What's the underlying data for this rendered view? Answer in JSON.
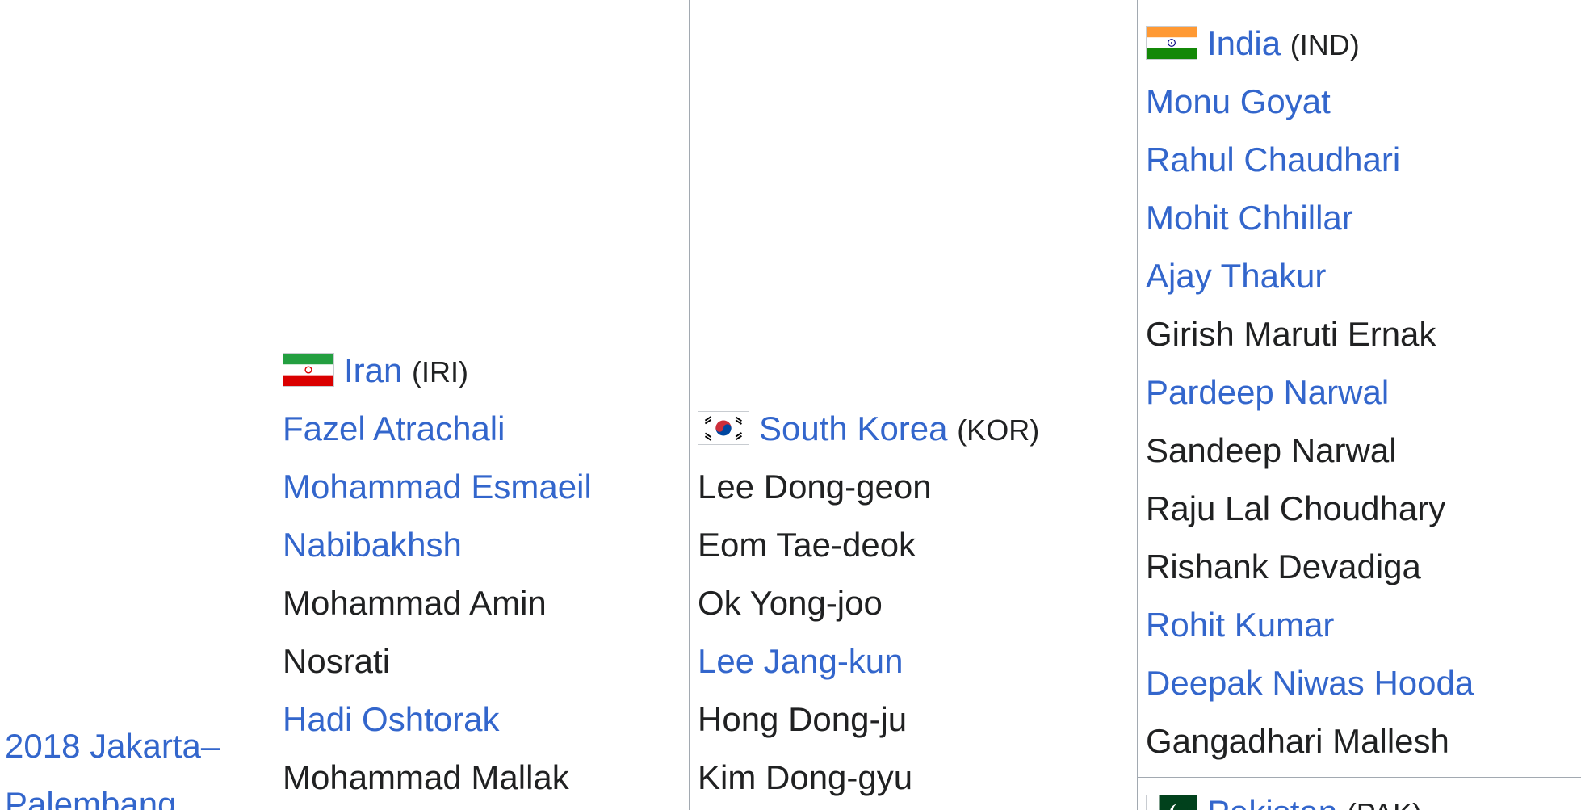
{
  "year": {
    "line1": "2018 Jakarta–",
    "line2": "Palembang"
  },
  "gold": {
    "country": "Iran",
    "code": "(IRI)",
    "flag_icon": "iran-flag-icon",
    "players": [
      {
        "name": "Fazel Atrachali",
        "link": true
      },
      {
        "name": "Mohammad Esmaeil",
        "link": true
      },
      {
        "name": "Nabibakhsh",
        "link": true
      },
      {
        "name": "Mohammad Amin",
        "link": false
      },
      {
        "name": "Nosrati",
        "link": false
      },
      {
        "name": "Hadi Oshtorak",
        "link": true
      },
      {
        "name": "Mohammad Mallak",
        "link": false
      }
    ]
  },
  "silver": {
    "country": "South Korea",
    "code": "(KOR)",
    "flag_icon": "south-korea-flag-icon",
    "players": [
      {
        "name": "Lee Dong-geon",
        "link": false
      },
      {
        "name": "Eom Tae-deok",
        "link": false
      },
      {
        "name": "Ok Yong-joo",
        "link": false
      },
      {
        "name": "Lee Jang-kun",
        "link": true
      },
      {
        "name": "Hong Dong-ju",
        "link": false
      },
      {
        "name": "Kim Dong-gyu",
        "link": false
      }
    ]
  },
  "bronze1": {
    "country": "India",
    "code": "(IND)",
    "flag_icon": "india-flag-icon",
    "players": [
      {
        "name": "Monu Goyat",
        "link": true
      },
      {
        "name": "Rahul Chaudhari",
        "link": true
      },
      {
        "name": "Mohit Chhillar",
        "link": true
      },
      {
        "name": "Ajay Thakur",
        "link": true
      },
      {
        "name": "Girish Maruti Ernak",
        "link": false
      },
      {
        "name": "Pardeep Narwal",
        "link": true
      },
      {
        "name": "Sandeep Narwal",
        "link": false
      },
      {
        "name": "Raju Lal Choudhary",
        "link": false
      },
      {
        "name": "Rishank Devadiga",
        "link": false
      },
      {
        "name": "Rohit Kumar",
        "link": true
      },
      {
        "name": "Deepak Niwas Hooda",
        "link": true
      },
      {
        "name": "Gangadhari Mallesh",
        "link": false
      }
    ]
  },
  "bronze2": {
    "country": "Pakistan",
    "code": "(PAK)",
    "flag_icon": "pakistan-flag-icon"
  },
  "colors": {
    "link": "#3366cc",
    "text": "#202122",
    "border": "#a2a9b1"
  }
}
